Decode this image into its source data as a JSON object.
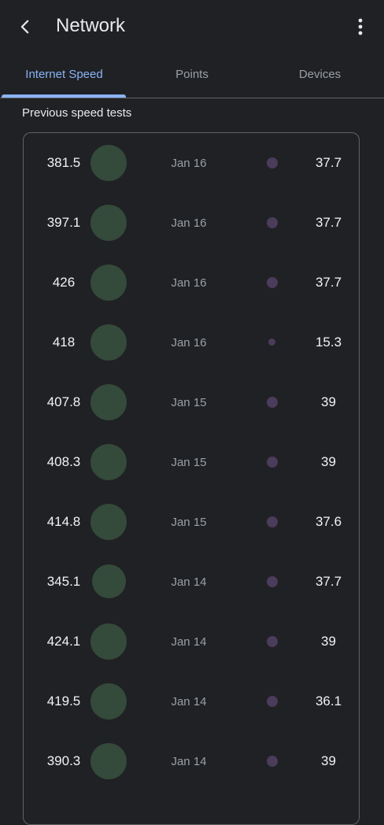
{
  "app_bar": {
    "title": "Network",
    "back_icon": "arrow-back-icon",
    "more_icon": "more-vert-icon"
  },
  "tabs": [
    {
      "label": "Internet Speed",
      "active": true
    },
    {
      "label": "Points",
      "active": false
    },
    {
      "label": "Devices",
      "active": false
    }
  ],
  "section_title": "Previous speed tests",
  "colors": {
    "background": "#202124",
    "accent": "#8ab4f8",
    "download_circle": "#344a3b",
    "upload_dot": "#4a3c5b"
  },
  "tests": [
    {
      "download": "381.5",
      "date": "Jan 16",
      "upload": "37.7"
    },
    {
      "download": "397.1",
      "date": "Jan 16",
      "upload": "37.7"
    },
    {
      "download": "426",
      "date": "Jan 16",
      "upload": "37.7"
    },
    {
      "download": "418",
      "date": "Jan 16",
      "upload": "15.3"
    },
    {
      "download": "407.8",
      "date": "Jan 15",
      "upload": "39"
    },
    {
      "download": "408.3",
      "date": "Jan 15",
      "upload": "39"
    },
    {
      "download": "414.8",
      "date": "Jan 15",
      "upload": "37.6"
    },
    {
      "download": "345.1",
      "date": "Jan 14",
      "upload": "37.7"
    },
    {
      "download": "424.1",
      "date": "Jan 14",
      "upload": "39"
    },
    {
      "download": "419.5",
      "date": "Jan 14",
      "upload": "36.1"
    },
    {
      "download": "390.3",
      "date": "Jan 14",
      "upload": "39"
    }
  ]
}
